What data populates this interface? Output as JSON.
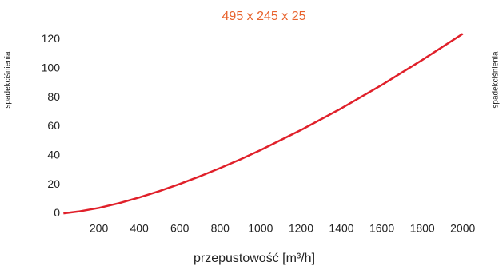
{
  "chart_data": {
    "type": "line",
    "title": "495 x 245 x 25",
    "title_color": "#e8622c",
    "y_label": "spadekciśnienia",
    "y2_label": "spadekciśnienia",
    "x_label": "przepustowość [m³/h]",
    "x": [
      25,
      100,
      200,
      300,
      400,
      500,
      600,
      700,
      800,
      900,
      1000,
      1200,
      1400,
      1600,
      1800,
      2000
    ],
    "series": [
      {
        "color": "#e0202a",
        "values": [
          0.17,
          1.39,
          3.92,
          7.2,
          11.1,
          15.5,
          20.4,
          25.7,
          31.4,
          37.4,
          43.8,
          57.6,
          72.6,
          88.7,
          105.9,
          124
        ]
      }
    ],
    "xlim": [
      0,
      2100
    ],
    "xticks": [
      200,
      400,
      600,
      800,
      1000,
      1200,
      1400,
      1600,
      1800,
      2000
    ],
    "ylim": [
      -2,
      128
    ],
    "yticks": [
      0,
      20,
      40,
      60,
      80,
      100,
      120
    ],
    "grid": false
  }
}
